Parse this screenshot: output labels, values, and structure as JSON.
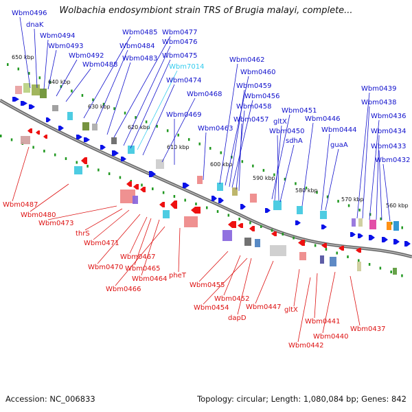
{
  "title": "Wolbachia endosymbiont strain TRS of Brugia malayi, complete...",
  "footer": {
    "accession": "Accession: NC_006833",
    "summary": "Topology: circular; Length: 1,080,084 bp; Genes: 842"
  },
  "colors": {
    "forward_label": "#1010cc",
    "reverse_label": "#dd1111",
    "highlight_label": "#33ccee",
    "forward_arrow": "#0a12e8",
    "reverse_arrow": "#ee1111",
    "axis": "#888888",
    "tick": "#229922"
  },
  "scale_labels": [
    "650 kbp",
    "640 kbp",
    "630 kbp",
    "620 kbp",
    "610 kbp",
    "600 kbp",
    "590 kbp",
    "580 kbp",
    "570 kbp",
    "560 kbp"
  ],
  "forward_labels": [
    "Wbm0496",
    "dnaK",
    "Wbm0494",
    "Wbm0493",
    "Wbm0492",
    "Wbm0488",
    "Wbm0485",
    "Wbm0484",
    "Wbm0483",
    "Wbm0477",
    "Wbm0476",
    "Wbm0475",
    "Wbm7014",
    "Wbm0474",
    "Wbm0468",
    "Wbm0469",
    "Wbm0463",
    "Wbm0462",
    "Wbm0460",
    "Wbm0459",
    "Wbm0456",
    "Wbm0458",
    "Wbm0457",
    "Wbm0451",
    "gltX",
    "Wbm0450",
    "sdhA",
    "Wbm0446",
    "Wbm0444",
    "guaA",
    "Wbm0439",
    "Wbm0438",
    "Wbm0436",
    "Wbm0434",
    "Wbm0433",
    "Wbm0432"
  ],
  "reverse_labels": [
    "Wbm0487",
    "Wbm0480",
    "Wbm0473",
    "thrS",
    "Wbm0471",
    "Wbm0470",
    "Wbm0467",
    "Wbm0465",
    "Wbm0464",
    "Wbm0466",
    "pheT",
    "Wbm0455",
    "Wbm0452",
    "Wbm0454",
    "dapD",
    "Wbm0447",
    "gltX",
    "Wbm0441",
    "Wbm0440",
    "Wbm0442",
    "Wbm0437"
  ]
}
